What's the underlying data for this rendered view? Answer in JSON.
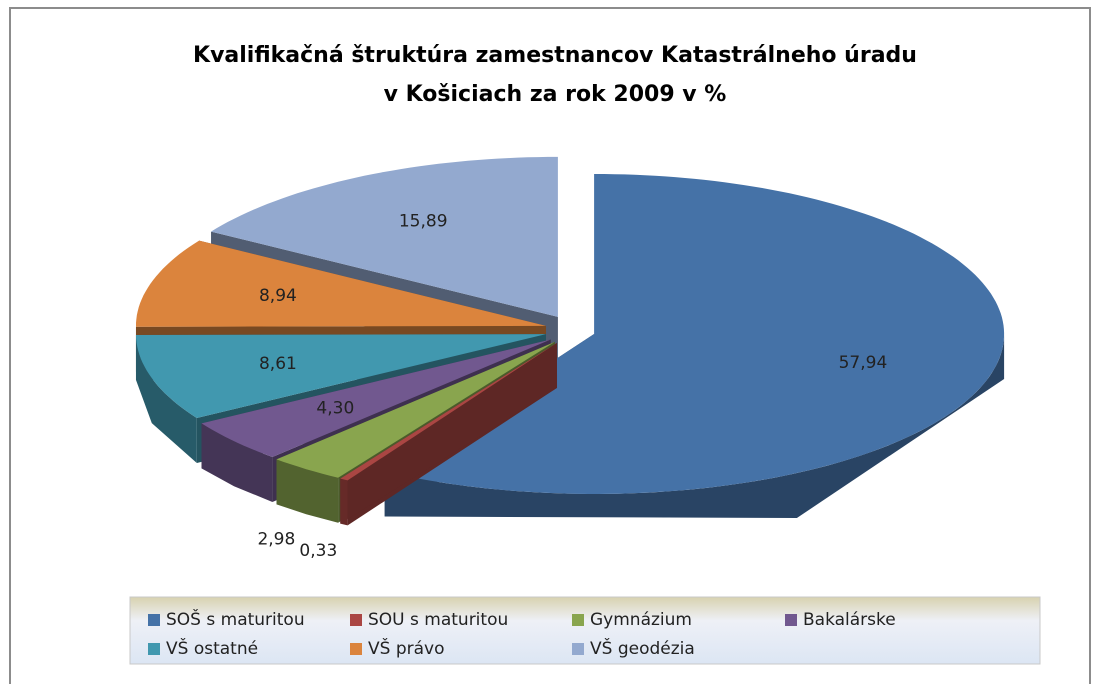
{
  "chart_data": {
    "type": "pie3d",
    "title": [
      "Kvalifikačná štruktúra zamestnancov Katastrálneho úradu",
      "v Košiciach za rok 2009 v %"
    ],
    "categories": [
      "SOŠ s maturitou",
      "SOU s maturitou",
      "Gymnázium",
      "Bakalárske",
      "VŠ ostatné",
      "VŠ právo",
      "VŠ geodézia"
    ],
    "values": [
      57.94,
      0.33,
      2.98,
      4.3,
      8.61,
      8.94,
      15.89
    ],
    "value_labels": [
      "57,94",
      "0,33",
      "2,98",
      "4,30",
      "8,61",
      "8,94",
      "15,89"
    ],
    "colors": [
      "#4572a7",
      "#aa4643",
      "#89a54e",
      "#71588f",
      "#4198af",
      "#db843d",
      "#93a9cf"
    ],
    "legend": "bottom"
  }
}
